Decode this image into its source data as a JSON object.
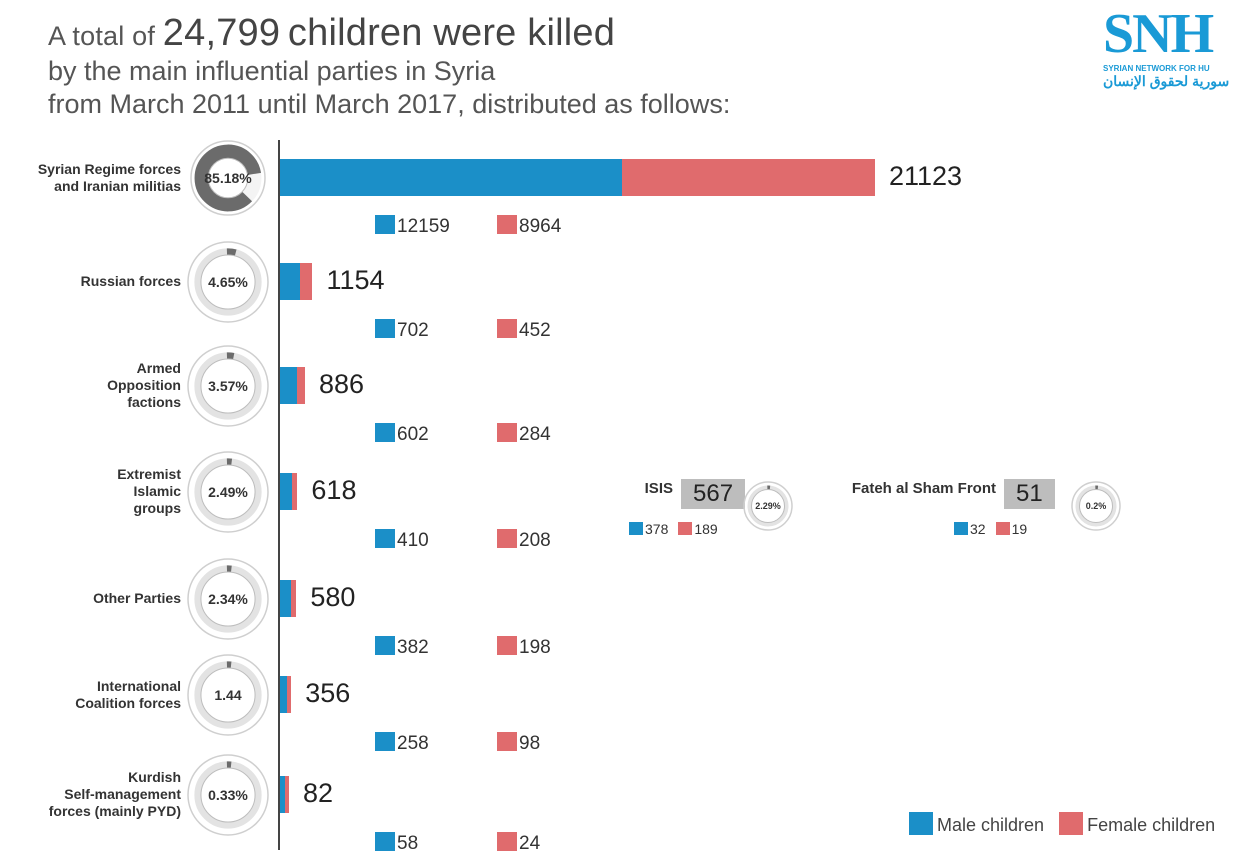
{
  "header": {
    "prefix": "A total of",
    "count": "24,799",
    "suffix": "children were killed",
    "line2": "by the main influential parties in Syria",
    "line3": "from March 2011 until March 2017, distributed as follows:"
  },
  "logo": {
    "mark": "SNH",
    "en": "SYRIAN NETWORK FOR HU",
    "ar": "سورية لحقوق الإنسان"
  },
  "colors": {
    "male": "#1b8fc8",
    "female": "#e06b6d",
    "ring": "#6b6b6b",
    "ring_track": "#e3e3e3"
  },
  "legend": {
    "male": "Male children",
    "female": "Female children"
  },
  "chart_data": {
    "type": "bar",
    "orientation": "horizontal",
    "stacked": true,
    "title": "A total of 24,799 children were killed by the main influential parties in Syria from March 2011 until March 2017, distributed as follows:",
    "series_names": [
      "Male children",
      "Female children"
    ],
    "categories": [
      {
        "label_lines": [
          "Syrian Regime forces",
          "and Iranian militias"
        ],
        "percent": "85.18%",
        "pct": 85.18,
        "total": 21123,
        "male": 12159,
        "female": 8964,
        "filled": true
      },
      {
        "label_lines": [
          "Russian forces"
        ],
        "percent": "4.65%",
        "pct": 4.65,
        "total": 1154,
        "male": 702,
        "female": 452
      },
      {
        "label_lines": [
          "Armed",
          "Opposition",
          "factions"
        ],
        "percent": "3.57%",
        "pct": 3.57,
        "total": 886,
        "male": 602,
        "female": 284
      },
      {
        "label_lines": [
          "Extremist",
          "Islamic",
          "groups"
        ],
        "percent": "2.49%",
        "pct": 2.49,
        "total": 618,
        "male": 410,
        "female": 208
      },
      {
        "label_lines": [
          "Other Parties"
        ],
        "percent": "2.34%",
        "pct": 2.34,
        "total": 580,
        "male": 382,
        "female": 198
      },
      {
        "label_lines": [
          "International",
          "Coalition forces"
        ],
        "percent": "1.44",
        "pct": 1.44,
        "total": 356,
        "male": 258,
        "female": 98
      },
      {
        "label_lines": [
          "Kurdish",
          "Self-management",
          "forces (mainly PYD)"
        ],
        "percent": "0.33%",
        "pct": 0.33,
        "total": 82,
        "male": 58,
        "female": 24
      }
    ],
    "breakdown": [
      {
        "parent": "Extremist Islamic groups",
        "name": "ISIS",
        "total": 567,
        "male": 378,
        "female": 189,
        "percent": "2.29%",
        "pct": 2.29
      },
      {
        "parent": "Extremist Islamic groups",
        "name": "Fateh al Sham Front",
        "total": 51,
        "male": 32,
        "female": 19,
        "percent": "0.2%",
        "pct": 0.2
      }
    ],
    "xlim": [
      0,
      21123
    ],
    "legend_position": "bottom-right"
  }
}
